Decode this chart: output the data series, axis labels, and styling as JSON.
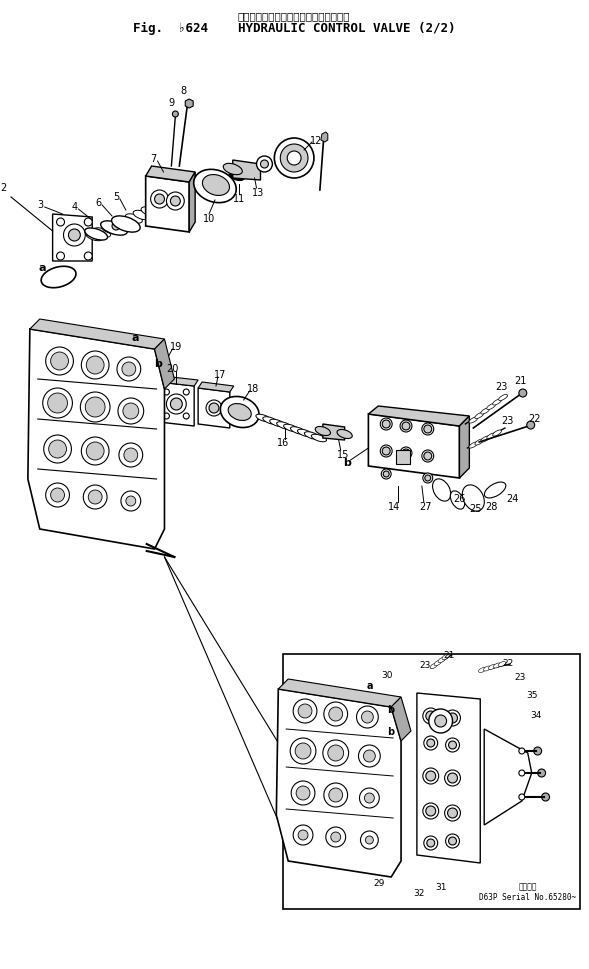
{
  "bg": "#ffffff",
  "title_jp": "ハイドロリック　コントロール　バルブ",
  "title_en": "Fig.  ♦24    HYDRAULIC CONTROL VALVE (2⁄₂)",
  "serial": "適用号機\nD63P Serial No.65280~"
}
